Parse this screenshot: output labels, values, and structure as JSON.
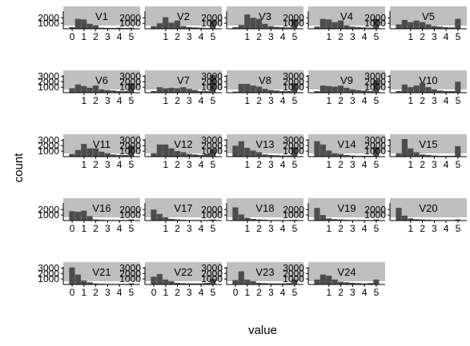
{
  "chart_data": {
    "type": "bar",
    "xlabel": "value",
    "ylabel": "count",
    "grid": false,
    "bar_color": "#4d4d4d",
    "strip_color": "#bfbfbf",
    "panel_order": [
      "V1",
      "V2",
      "V3",
      "V4",
      "V5",
      "V6",
      "V7",
      "V8",
      "V9",
      "V10",
      "V11",
      "V12",
      "V13",
      "V14",
      "V15",
      "V16",
      "V17",
      "V18",
      "V19",
      "V20",
      "V21",
      "V22",
      "V23",
      "V24"
    ],
    "bins": [
      0,
      0.5,
      1,
      1.5,
      2,
      2.5,
      3,
      3.5,
      4,
      4.5,
      5
    ],
    "ylim": [
      0,
      3200
    ],
    "panels": [
      {
        "name": "V1",
        "x_ticks": [
          "0",
          "1",
          "2",
          "3",
          "4",
          "5"
        ],
        "y_ticks": [
          "1000",
          "2000"
        ],
        "values": [
          300,
          1800,
          1700,
          900,
          600,
          200,
          150,
          150,
          200,
          150,
          200
        ]
      },
      {
        "name": "V2",
        "x_ticks": [
          "1",
          "2",
          "3",
          "4",
          "5"
        ],
        "y_ticks": [
          "1000",
          "2000"
        ],
        "values": [
          500,
          1000,
          2100,
          1100,
          1500,
          500,
          300,
          250,
          200,
          150,
          1500
        ]
      },
      {
        "name": "V3",
        "x_ticks": [
          "1",
          "2",
          "3",
          "4",
          "5"
        ],
        "y_ticks": [
          "1000",
          "2000"
        ],
        "values": [
          300,
          700,
          2600,
          2000,
          1800,
          900,
          500,
          350,
          300,
          250,
          1700
        ]
      },
      {
        "name": "V4",
        "x_ticks": [
          "1",
          "2",
          "3",
          "4",
          "5"
        ],
        "y_ticks": [
          "1000",
          "2000"
        ],
        "values": [
          400,
          1800,
          1700,
          1200,
          1500,
          600,
          400,
          300,
          250,
          200,
          1800
        ]
      },
      {
        "name": "V5",
        "x_ticks": [
          "1",
          "2",
          "3",
          "4",
          "5"
        ],
        "y_ticks": [
          "1000",
          "2000"
        ],
        "values": [
          800,
          1600,
          1200,
          1500,
          1200,
          800,
          500,
          400,
          300,
          250,
          1800
        ]
      },
      {
        "name": "V6",
        "x_ticks": [
          "1",
          "2",
          "3",
          "4",
          "5"
        ],
        "y_ticks": [
          "1000",
          "2000",
          "3000"
        ],
        "values": [
          800,
          1500,
          1200,
          900,
          1300,
          600,
          500,
          400,
          300,
          300,
          1700
        ]
      },
      {
        "name": "V7",
        "x_ticks": [
          "1",
          "2",
          "3",
          "4",
          "5"
        ],
        "y_ticks": [
          "1000",
          "2000",
          "3000"
        ],
        "values": [
          300,
          1000,
          800,
          900,
          800,
          1000,
          700,
          500,
          300,
          300,
          3200
        ]
      },
      {
        "name": "V8",
        "x_ticks": [
          "1",
          "2",
          "3",
          "4",
          "5"
        ],
        "y_ticks": [
          "1000",
          "2000",
          "3000"
        ],
        "values": [
          200,
          1600,
          1600,
          1300,
          1100,
          700,
          500,
          400,
          300,
          300,
          1700
        ]
      },
      {
        "name": "V9",
        "x_ticks": [
          "1",
          "2",
          "3",
          "4",
          "5"
        ],
        "y_ticks": [
          "1000",
          "2000",
          "3000"
        ],
        "values": [
          300,
          1300,
          1200,
          1100,
          1300,
          900,
          600,
          500,
          400,
          300,
          2300
        ]
      },
      {
        "name": "V10",
        "x_ticks": [
          "1",
          "2",
          "3",
          "4",
          "5"
        ],
        "y_ticks": [
          "1000",
          "2000",
          "3000"
        ],
        "values": [
          300,
          1500,
          1000,
          1300,
          1800,
          1000,
          600,
          400,
          300,
          300,
          2000
        ]
      },
      {
        "name": "V11",
        "x_ticks": [
          "1",
          "2",
          "3",
          "4",
          "5"
        ],
        "y_ticks": [
          "1000",
          "2000",
          "3000"
        ],
        "values": [
          500,
          1200,
          2300,
          1500,
          1500,
          900,
          600,
          400,
          300,
          300,
          2000
        ]
      },
      {
        "name": "V12",
        "x_ticks": [
          "1",
          "2",
          "3",
          "4",
          "5"
        ],
        "y_ticks": [
          "1000",
          "2000",
          "3000"
        ],
        "values": [
          600,
          2200,
          2200,
          1500,
          1000,
          800,
          500,
          400,
          300,
          500,
          1300
        ]
      },
      {
        "name": "V13",
        "x_ticks": [
          "1",
          "2",
          "3",
          "4",
          "5"
        ],
        "y_ticks": [
          "1000",
          "2000",
          "3000"
        ],
        "values": [
          2000,
          2800,
          1600,
          1100,
          800,
          400,
          300,
          250,
          200,
          200,
          1700
        ]
      },
      {
        "name": "V14",
        "x_ticks": [
          "1",
          "2",
          "3",
          "4",
          "5"
        ],
        "y_ticks": [
          "1000",
          "2000",
          "3000"
        ],
        "values": [
          2800,
          2200,
          1100,
          600,
          500,
          300,
          200,
          150,
          150,
          150,
          1700
        ]
      },
      {
        "name": "V15",
        "x_ticks": [
          "1",
          "2",
          "3",
          "4",
          "5"
        ],
        "y_ticks": [
          "1000",
          "2000",
          "3000"
        ],
        "values": [
          600,
          3200,
          1500,
          800,
          400,
          300,
          200,
          150,
          150,
          150,
          1900
        ]
      },
      {
        "name": "V16",
        "x_ticks": [
          "0",
          "1",
          "2",
          "3",
          "4",
          "5"
        ],
        "y_ticks": [
          "1000",
          "2000"
        ],
        "values": [
          1700,
          1600,
          1800,
          800,
          200,
          150,
          100,
          100,
          100,
          100,
          200
        ]
      },
      {
        "name": "V17",
        "x_ticks": [
          "1",
          "2",
          "3",
          "4",
          "5"
        ],
        "y_ticks": [
          "1000",
          "2000"
        ],
        "values": [
          2000,
          1200,
          600,
          300,
          200,
          150,
          100,
          100,
          100,
          100,
          200
        ]
      },
      {
        "name": "V18",
        "x_ticks": [
          "1",
          "2",
          "3",
          "4",
          "5"
        ],
        "y_ticks": [
          "1000",
          "2000"
        ],
        "values": [
          2400,
          1100,
          500,
          300,
          200,
          150,
          100,
          100,
          100,
          100,
          150
        ]
      },
      {
        "name": "V19",
        "x_ticks": [
          "1",
          "2",
          "3",
          "4",
          "5"
        ],
        "y_ticks": [
          "1000",
          "2000"
        ],
        "values": [
          2300,
          1000,
          400,
          250,
          200,
          150,
          100,
          100,
          100,
          100,
          200
        ]
      },
      {
        "name": "V20",
        "x_ticks": [
          "1",
          "2",
          "3",
          "4",
          "5"
        ],
        "y_ticks": [
          "1000",
          "2000"
        ],
        "values": [
          2300,
          900,
          400,
          250,
          200,
          150,
          100,
          100,
          100,
          100,
          200
        ]
      },
      {
        "name": "V21",
        "x_ticks": [
          "0",
          "1",
          "2",
          "3",
          "4",
          "5"
        ],
        "y_ticks": [
          "1000",
          "2000",
          "3000"
        ],
        "values": [
          3100,
          1800,
          700,
          400,
          200,
          150,
          100,
          100,
          100,
          100,
          200
        ]
      },
      {
        "name": "V22",
        "x_ticks": [
          "0",
          "1",
          "2",
          "3",
          "4",
          "5"
        ],
        "y_ticks": [
          "1000",
          "2000",
          "3000"
        ],
        "values": [
          1400,
          1900,
          900,
          600,
          300,
          250,
          200,
          200,
          200,
          300,
          1000
        ]
      },
      {
        "name": "V23",
        "x_ticks": [
          "0",
          "1",
          "2",
          "3",
          "4",
          "5"
        ],
        "y_ticks": [
          "1000",
          "2000",
          "3000"
        ],
        "values": [
          800,
          2400,
          900,
          600,
          300,
          250,
          200,
          200,
          200,
          250,
          900
        ]
      },
      {
        "name": "V24",
        "x_ticks": [
          "1",
          "2",
          "3",
          "4",
          "5"
        ],
        "y_ticks": [
          "1000",
          "2000",
          "3000"
        ],
        "values": [
          900,
          1800,
          1600,
          900,
          500,
          400,
          300,
          250,
          200,
          250,
          900
        ]
      }
    ]
  }
}
